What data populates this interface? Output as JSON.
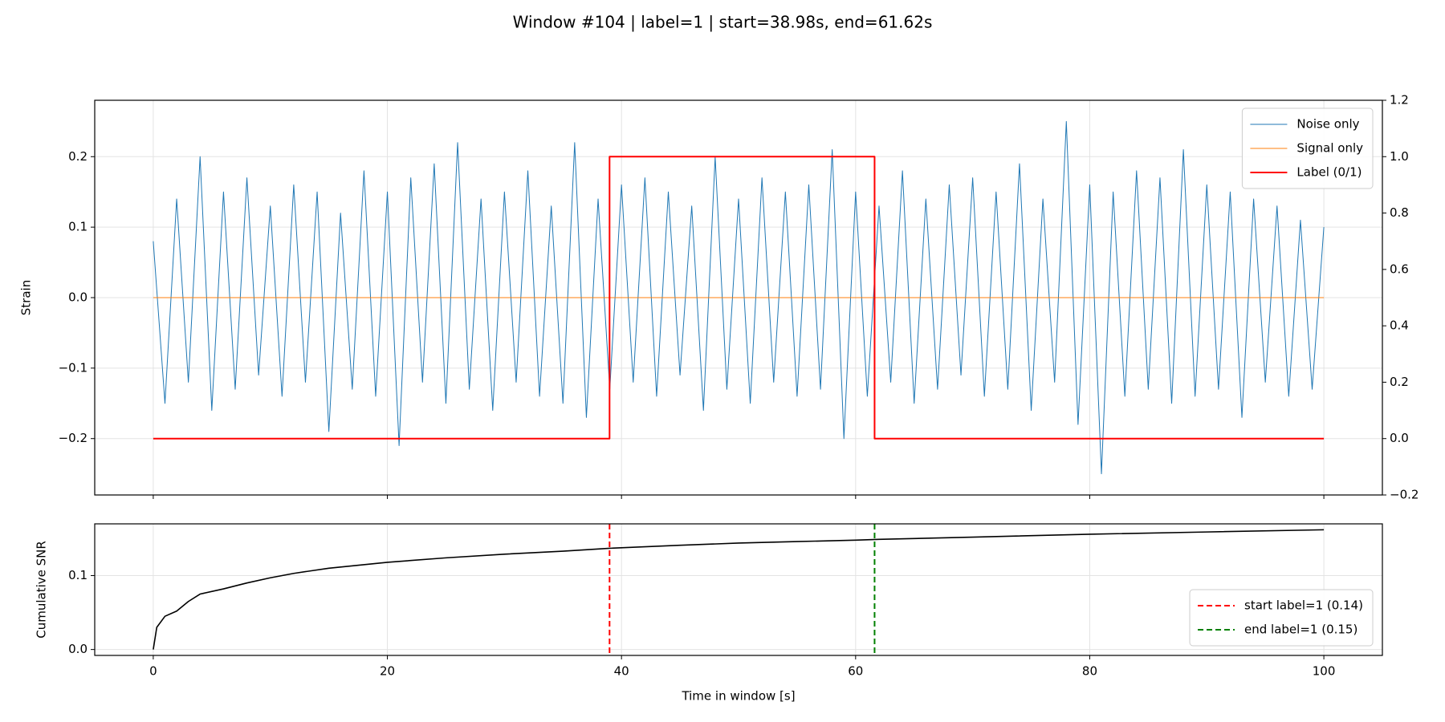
{
  "chart_data": [
    {
      "type": "line",
      "title": "Window #104 | label=1 | start=38.98s, end=61.62s",
      "y_label": "Strain",
      "xlim": [
        -5,
        105
      ],
      "xticks": [
        0,
        20,
        40,
        60,
        80,
        100
      ],
      "ylim": [
        -0.28,
        0.28
      ],
      "yticks": [
        {
          "value": -0.2,
          "label": "−0.2"
        },
        {
          "value": -0.1,
          "label": "−0.1"
        },
        {
          "value": 0,
          "label": "0.0"
        },
        0.1,
        0.2
      ],
      "y2lim": [
        -0.2,
        1.2
      ],
      "y2ticks": [
        {
          "value": -0.2,
          "label": "−0.2"
        },
        {
          "value": 0,
          "label": "0.0"
        },
        0.2,
        0.4,
        0.6,
        0.8,
        {
          "value": 1,
          "label": "1.0"
        },
        1.2
      ],
      "grid": true,
      "legend": "upper right",
      "series": [
        {
          "name": "Noise only",
          "color": "#1f77b4",
          "width": 1,
          "x": [
            0,
            1,
            2,
            3,
            4,
            5,
            6,
            7,
            8,
            9,
            10,
            11,
            12,
            13,
            14,
            15,
            16,
            17,
            18,
            19,
            20,
            21,
            22,
            23,
            24,
            25,
            26,
            27,
            28,
            29,
            30,
            31,
            32,
            33,
            34,
            35,
            36,
            37,
            38,
            39,
            40,
            41,
            42,
            43,
            44,
            45,
            46,
            47,
            48,
            49,
            50,
            51,
            52,
            53,
            54,
            55,
            56,
            57,
            58,
            59,
            60,
            61,
            62,
            63,
            64,
            65,
            66,
            67,
            68,
            69,
            70,
            71,
            72,
            73,
            74,
            75,
            76,
            77,
            78,
            79,
            80,
            81,
            82,
            83,
            84,
            85,
            86,
            87,
            88,
            89,
            90,
            91,
            92,
            93,
            94,
            95,
            96,
            97,
            98,
            99,
            100
          ],
          "values": [
            0.08,
            -0.15,
            0.14,
            -0.12,
            0.2,
            -0.16,
            0.15,
            -0.13,
            0.17,
            -0.11,
            0.13,
            -0.14,
            0.16,
            -0.12,
            0.15,
            -0.19,
            0.12,
            -0.13,
            0.18,
            -0.14,
            0.15,
            -0.21,
            0.17,
            -0.12,
            0.19,
            -0.15,
            0.22,
            -0.13,
            0.14,
            -0.16,
            0.15,
            -0.12,
            0.18,
            -0.14,
            0.13,
            -0.15,
            0.22,
            -0.17,
            0.14,
            -0.13,
            0.16,
            -0.12,
            0.17,
            -0.14,
            0.15,
            -0.11,
            0.13,
            -0.16,
            0.2,
            -0.13,
            0.14,
            -0.15,
            0.17,
            -0.12,
            0.15,
            -0.14,
            0.16,
            -0.13,
            0.21,
            -0.2,
            0.15,
            -0.14,
            0.13,
            -0.12,
            0.18,
            -0.15,
            0.14,
            -0.13,
            0.16,
            -0.11,
            0.17,
            -0.14,
            0.15,
            -0.13,
            0.19,
            -0.16,
            0.14,
            -0.12,
            0.25,
            -0.18,
            0.16,
            -0.25,
            0.15,
            -0.14,
            0.18,
            -0.13,
            0.17,
            -0.15,
            0.21,
            -0.14,
            0.16,
            -0.13,
            0.15,
            -0.17,
            0.14,
            -0.12,
            0.13,
            -0.14,
            0.11,
            -0.13,
            0.1
          ]
        },
        {
          "name": "Signal only",
          "color": "#ff7f0e",
          "width": 1,
          "x": [
            0,
            100
          ],
          "values": [
            0,
            0
          ]
        },
        {
          "name": "Label (0/1)",
          "color": "#ff0000",
          "width": 2,
          "axis": "y2",
          "x": [
            0,
            38.98,
            38.98,
            61.62,
            61.62,
            100
          ],
          "values": [
            0,
            0,
            1,
            1,
            0,
            0
          ]
        }
      ]
    },
    {
      "type": "line",
      "y_label": "Cumulative SNR",
      "x_label": "Time in window [s]",
      "xlim": [
        -5,
        105
      ],
      "xticks": [
        0,
        20,
        40,
        60,
        80,
        100
      ],
      "ylim": [
        -0.008,
        0.17
      ],
      "yticks": [
        {
          "value": 0,
          "label": "0.0"
        },
        0.1
      ],
      "grid": true,
      "legend": "lower right",
      "series": [
        {
          "color": "#000000",
          "width": 1.6,
          "x": [
            0,
            0.3,
            1,
            2,
            3,
            4,
            6,
            8,
            10,
            12,
            15,
            20,
            25,
            30,
            35,
            39,
            45,
            50,
            55,
            60,
            62,
            70,
            80,
            90,
            100
          ],
          "values": [
            0,
            0.03,
            0.045,
            0.052,
            0.065,
            0.075,
            0.082,
            0.09,
            0.097,
            0.103,
            0.11,
            0.118,
            0.124,
            0.129,
            0.133,
            0.137,
            0.141,
            0.144,
            0.146,
            0.148,
            0.149,
            0.152,
            0.156,
            0.159,
            0.162
          ]
        }
      ],
      "vlines": [
        {
          "x": 38.98,
          "name": "start label=1 (0.14)",
          "color": "#ff0000"
        },
        {
          "x": 61.62,
          "name": "end label=1 (0.15)",
          "color": "#008000"
        }
      ]
    }
  ]
}
